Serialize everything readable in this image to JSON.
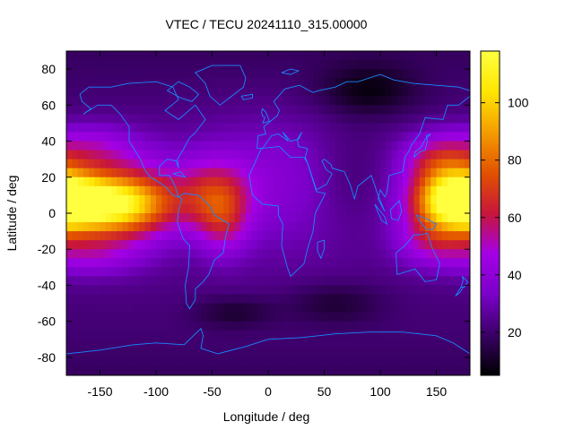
{
  "chart_data": {
    "type": "heatmap",
    "title": "VTEC / TECU 20241110_315.00000",
    "xlabel": "Longitude / deg",
    "ylabel": "Latitude / deg",
    "xlim": [
      -180,
      180
    ],
    "ylim": [
      -90,
      90
    ],
    "xticks": [
      -150,
      -100,
      -50,
      0,
      50,
      100,
      150
    ],
    "yticks": [
      -80,
      -60,
      -40,
      -20,
      0,
      20,
      40,
      60,
      80
    ],
    "grid": false,
    "colorbar": {
      "range": [
        5,
        118
      ],
      "ticks": [
        20,
        40,
        60,
        80,
        100
      ],
      "palette": [
        "#000000",
        "#3a0066",
        "#7b00c9",
        "#a400e6",
        "#c8163a",
        "#e25200",
        "#f59d00",
        "#ffe600",
        "#ffff40"
      ]
    },
    "overlay": "coastlines",
    "overlay_color": "#1a88ff",
    "model": {
      "background": 24,
      "features": [
        {
          "lon": -150,
          "lat": 5,
          "amp": 86,
          "sx": 38,
          "sy": 11
        },
        {
          "lon": -115,
          "lat": 8,
          "amp": 22,
          "sx": 28,
          "sy": 18
        },
        {
          "lon": -160,
          "lat": 35,
          "amp": 24,
          "sx": 30,
          "sy": 10
        },
        {
          "lon": -160,
          "lat": -22,
          "amp": 22,
          "sx": 32,
          "sy": 9
        },
        {
          "lon": 168,
          "lat": 8,
          "amp": 82,
          "sx": 26,
          "sy": 12
        },
        {
          "lon": 150,
          "lat": 30,
          "amp": 28,
          "sx": 22,
          "sy": 10
        },
        {
          "lon": 145,
          "lat": -15,
          "amp": 24,
          "sx": 22,
          "sy": 10
        },
        {
          "lon": -50,
          "lat": 10,
          "amp": 32,
          "sx": 24,
          "sy": 14
        },
        {
          "lon": -40,
          "lat": -5,
          "amp": 22,
          "sx": 16,
          "sy": 14
        },
        {
          "lon": 20,
          "lat": 5,
          "amp": 8,
          "sx": 50,
          "sy": 25
        },
        {
          "lon": 0,
          "lat": 30,
          "amp": 8,
          "sx": 60,
          "sy": 20
        }
      ],
      "dips": [
        {
          "lon": 90,
          "lat": 68,
          "amp": -14,
          "sx": 30,
          "sy": 10
        },
        {
          "lon": 70,
          "lat": 20,
          "amp": -8,
          "sx": 25,
          "sy": 20
        },
        {
          "lon": -30,
          "lat": -55,
          "amp": -10,
          "sx": 25,
          "sy": 6
        },
        {
          "lon": 60,
          "lat": -50,
          "amp": -10,
          "sx": 30,
          "sy": 8
        }
      ]
    }
  }
}
